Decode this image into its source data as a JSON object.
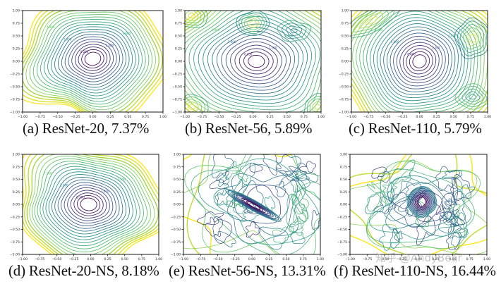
{
  "figure": {
    "description": "2D loss surface contour plots of ResNet models with and without skip connections",
    "watermark": "知乎 @AndyBear",
    "axis_ticks": [
      "-1.00",
      "-0.75",
      "-0.50",
      "-0.25",
      "0.00",
      "0.25",
      "0.50",
      "0.75",
      "1.00"
    ],
    "colormap": [
      "#440154",
      "#3b528b",
      "#21918c",
      "#5ec962",
      "#fde725"
    ],
    "panels": [
      {
        "id": "a",
        "caption": "(a) ResNet-20, 7.37%",
        "model": "ResNet-20",
        "error": "7.37%",
        "contour_labels": [
          "0.200",
          "1.000",
          "2.000",
          "3.600",
          "4.800"
        ]
      },
      {
        "id": "b",
        "caption": "(b) ResNet-56, 5.89%",
        "model": "ResNet-56",
        "error": "5.89%",
        "contour_labels": [
          "0.200",
          "1.200",
          "2.400",
          "3.600",
          "4.800"
        ]
      },
      {
        "id": "c",
        "caption": "(c) ResNet-110, 5.79%",
        "model": "ResNet-110",
        "error": "5.79%",
        "contour_labels": [
          "0.400",
          "1.200",
          "2.000",
          "3.600",
          "5.100"
        ]
      },
      {
        "id": "d",
        "caption": "(d) ResNet-20-NS, 8.18%",
        "model": "ResNet-20-NS",
        "error": "8.18%",
        "contour_labels": [
          "0.200",
          "1.000",
          "2.000",
          "3.500",
          "7.100"
        ]
      },
      {
        "id": "e",
        "caption": "(e) ResNet-56-NS, 13.31%",
        "model": "ResNet-56-NS",
        "error": "13.31%",
        "contour_labels": []
      },
      {
        "id": "f",
        "caption": "(f) ResNet-110-NS, 16.44%",
        "model": "ResNet-110-NS",
        "error": "16.44%",
        "contour_labels": []
      }
    ]
  },
  "chart_data": [
    {
      "type": "contour",
      "title": "(a) ResNet-20, 7.37%",
      "xlim": [
        -1,
        1
      ],
      "ylim": [
        -1,
        1
      ],
      "xticks": [
        -1.0,
        -0.75,
        -0.5,
        -0.25,
        0.0,
        0.25,
        0.5,
        0.75,
        1.0
      ],
      "yticks": [
        -1.0,
        -0.75,
        -0.5,
        -0.25,
        0.0,
        0.25,
        0.5,
        0.75,
        1.0
      ],
      "minimum": [
        0.0,
        0.05
      ],
      "shape": "convex, smooth, irregular outer boundary",
      "min_level": 0.2,
      "grid": false
    },
    {
      "type": "contour",
      "title": "(b) ResNet-56, 5.89%",
      "xlim": [
        -1,
        1
      ],
      "ylim": [
        -1,
        1
      ],
      "xticks": [
        -1.0,
        -0.75,
        -0.5,
        -0.25,
        0.0,
        0.25,
        0.5,
        0.75,
        1.0
      ],
      "yticks": [
        -1.0,
        -0.75,
        -0.5,
        -0.25,
        0.0,
        0.25,
        0.5,
        0.75,
        1.0
      ],
      "minimum": [
        0.05,
        0.0
      ],
      "shape": "convex central basin, local minima near edges",
      "min_level": 0.2,
      "grid": false
    },
    {
      "type": "contour",
      "title": "(c) ResNet-110, 5.79%",
      "xlim": [
        -1,
        1
      ],
      "ylim": [
        -1,
        1
      ],
      "xticks": [
        -1.0,
        -0.75,
        -0.5,
        -0.25,
        0.0,
        0.25,
        0.5,
        0.75,
        1.0
      ],
      "yticks": [
        -1.0,
        -0.75,
        -0.5,
        -0.25,
        0.0,
        0.25,
        0.5,
        0.75,
        1.0
      ],
      "minimum": [
        0.0,
        0.0
      ],
      "shape": "convex central basin, tilted",
      "min_level": 0.4,
      "grid": false
    },
    {
      "type": "contour",
      "title": "(d) ResNet-20-NS, 8.18%",
      "xlim": [
        -1,
        1
      ],
      "ylim": [
        -1,
        1
      ],
      "xticks": [
        -1.0,
        -0.75,
        -0.5,
        -0.25,
        0.0,
        0.25,
        0.5,
        0.75,
        1.0
      ],
      "yticks": [
        -1.0,
        -0.75,
        -0.5,
        -0.25,
        0.0,
        0.25,
        0.5,
        0.75,
        1.0
      ],
      "minimum": [
        0.0,
        0.0
      ],
      "shape": "convex, smooth",
      "min_level": 0.2,
      "grid": false
    },
    {
      "type": "contour",
      "title": "(e) ResNet-56-NS, 13.31%",
      "xlim": [
        -1,
        1
      ],
      "ylim": [
        -1,
        1
      ],
      "xticks": [
        -1.0,
        -0.75,
        -0.5,
        -0.25,
        0.0,
        0.25,
        0.5,
        0.75,
        1.0
      ],
      "yticks": [
        -1.0,
        -0.75,
        -0.5,
        -0.25,
        0.0,
        0.25,
        0.5,
        0.75,
        1.0
      ],
      "minimum": [
        0.05,
        -0.05
      ],
      "shape": "chaotic, narrow diagonal valley",
      "grid": false
    },
    {
      "type": "contour",
      "title": "(f) ResNet-110-NS, 16.44%",
      "xlim": [
        -1,
        1
      ],
      "ylim": [
        -1,
        1
      ],
      "xticks": [
        -1.0,
        -0.75,
        -0.5,
        -0.25,
        0.0,
        0.25,
        0.5,
        0.75,
        1.0
      ],
      "yticks": [
        -1.0,
        -0.75,
        -0.5,
        -0.25,
        0.0,
        0.25,
        0.5,
        0.75,
        1.0
      ],
      "minimum": [
        0.05,
        0.05
      ],
      "shape": "chaotic, highly non-convex",
      "grid": false
    }
  ]
}
